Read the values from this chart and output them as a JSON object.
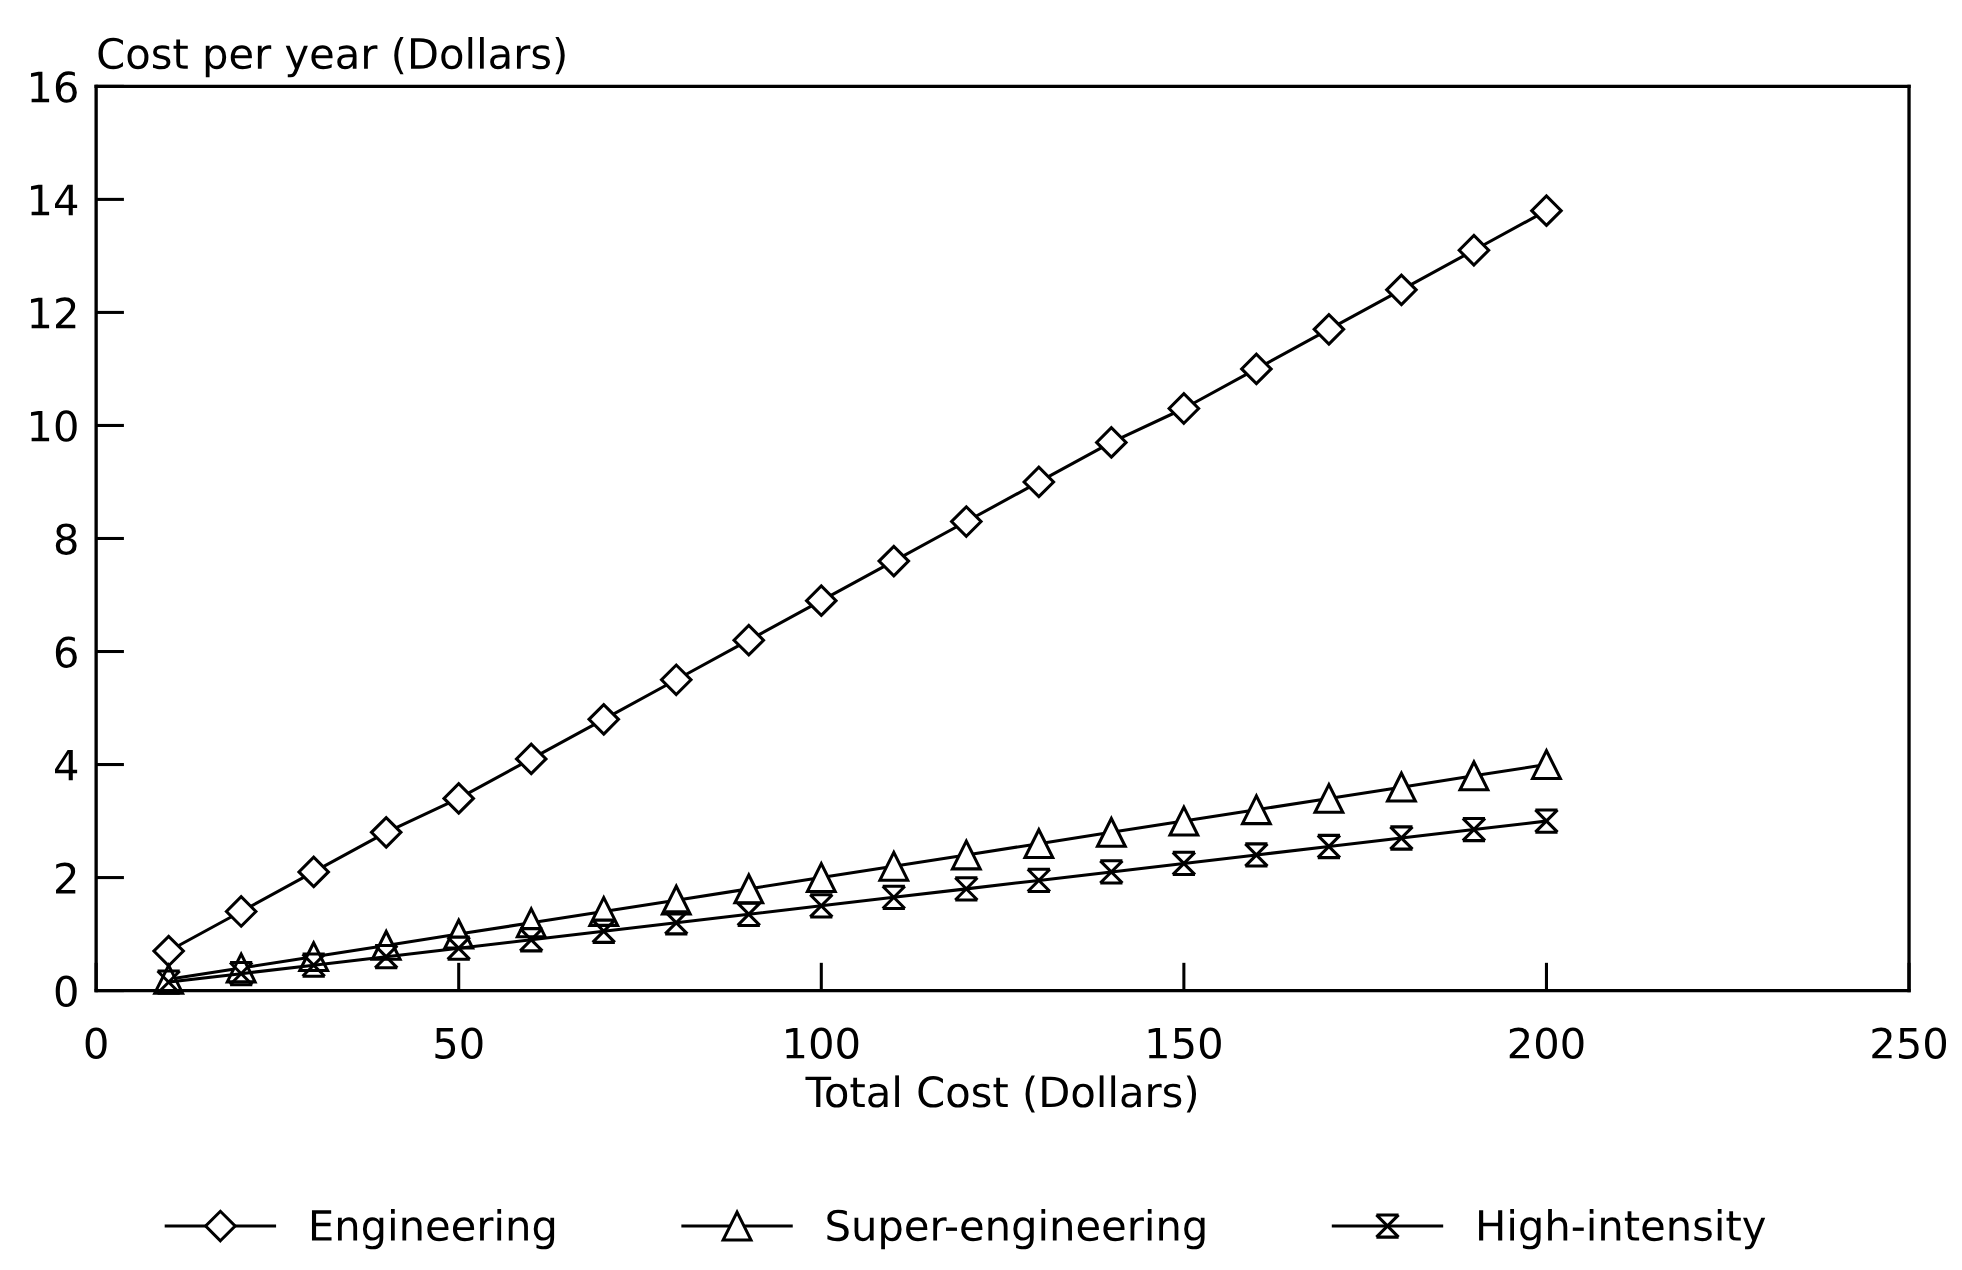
{
  "chart_data": {
    "type": "line",
    "xlabel": "Total Cost (Dollars)",
    "ylabel": "Cost per year (Dollars)",
    "x": [
      10,
      20,
      30,
      40,
      50,
      60,
      70,
      80,
      90,
      100,
      110,
      120,
      130,
      140,
      150,
      160,
      170,
      180,
      190,
      200
    ],
    "series": [
      {
        "name": "Engineering",
        "color": "#000000",
        "marker": "diamond",
        "values": [
          0.7,
          1.4,
          2.1,
          2.8,
          3.4,
          4.1,
          4.8,
          5.5,
          6.2,
          6.9,
          7.6,
          8.3,
          9.0,
          9.7,
          10.3,
          11.0,
          11.7,
          12.4,
          13.1,
          13.8
        ]
      },
      {
        "name": "Super-engineering",
        "color": "#000000",
        "marker": "triangle",
        "values": [
          0.2,
          0.4,
          0.6,
          0.8,
          1.0,
          1.2,
          1.4,
          1.6,
          1.8,
          2.0,
          2.2,
          2.4,
          2.6,
          2.8,
          3.0,
          3.2,
          3.4,
          3.6,
          3.8,
          4.0
        ]
      },
      {
        "name": "High-intensity",
        "color": "#000000",
        "marker": "cross",
        "values": [
          0.15,
          0.3,
          0.45,
          0.6,
          0.75,
          0.9,
          1.05,
          1.2,
          1.35,
          1.5,
          1.65,
          1.8,
          1.95,
          2.1,
          2.25,
          2.4,
          2.55,
          2.7,
          2.85,
          3.0
        ]
      }
    ],
    "xlim": [
      0,
      250
    ],
    "xticks": [
      0,
      50,
      100,
      150,
      200,
      250
    ],
    "ylim": [
      0,
      16
    ],
    "yticks": [
      0,
      2,
      4,
      6,
      8,
      10,
      12,
      14,
      16
    ],
    "line_style": "solid",
    "legend": "bottom"
  }
}
